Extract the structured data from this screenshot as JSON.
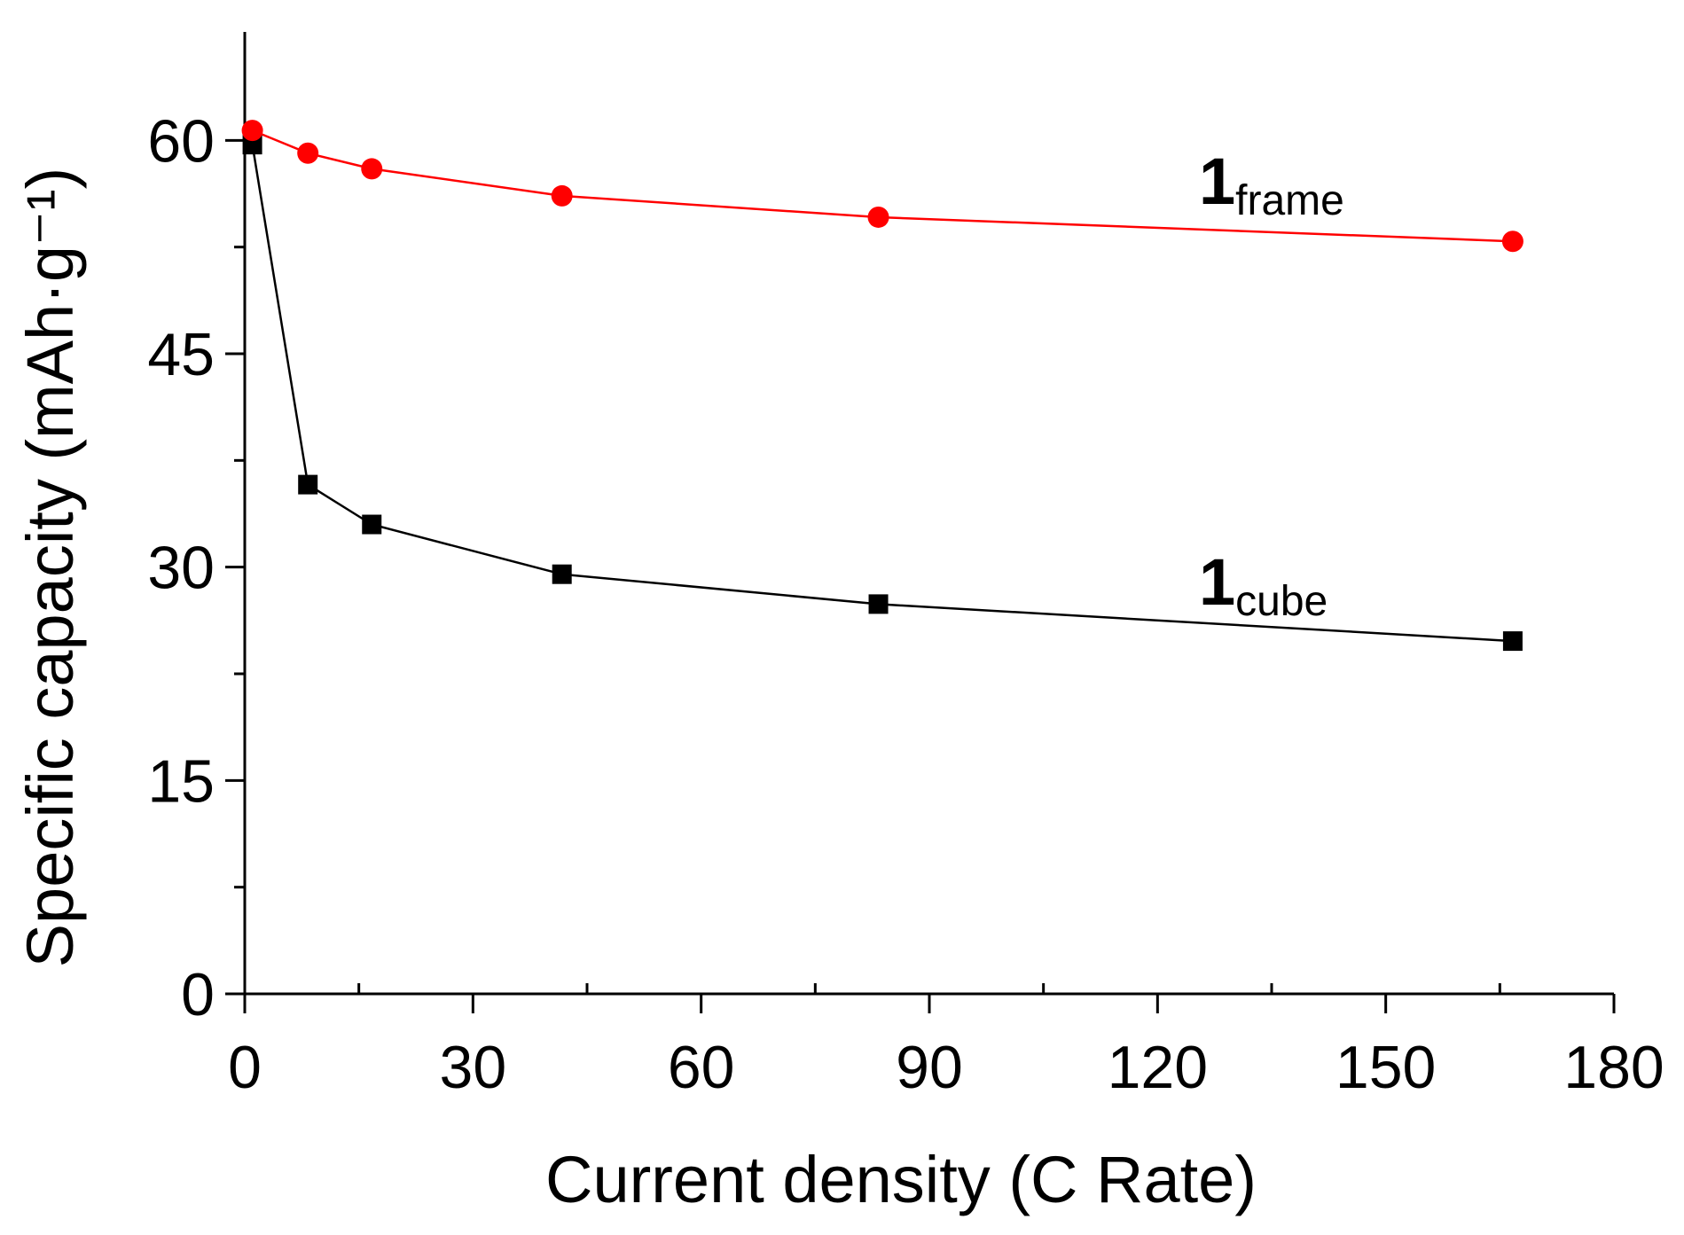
{
  "chart_data": {
    "type": "line",
    "title": "",
    "xlabel": "Current density (C Rate)",
    "ylabel": "Specific capacity (mAh·g⁻¹)",
    "xlim": [
      0,
      180
    ],
    "ylim": [
      0,
      67.5
    ],
    "x_ticks": [
      0,
      30,
      60,
      90,
      120,
      150,
      180
    ],
    "y_ticks": [
      0,
      15,
      30,
      45,
      60
    ],
    "x_tick_labels": [
      "0",
      "30",
      "60",
      "90",
      "120",
      "150",
      "180"
    ],
    "y_tick_labels": [
      "0",
      "15",
      "30",
      "45",
      "60"
    ],
    "grid": false,
    "legend": "none",
    "series": [
      {
        "name": "1frame",
        "label_main": "1",
        "label_sub": "frame",
        "color": "#ff0000",
        "marker": "circle",
        "x": [
          1,
          8.3,
          16.7,
          41.7,
          83.3,
          166.7
        ],
        "values": [
          60.7,
          59.1,
          58.0,
          56.1,
          54.6,
          52.9
        ]
      },
      {
        "name": "1cube",
        "label_main": "1",
        "label_sub": "cube",
        "color": "#000000",
        "marker": "square",
        "x": [
          1,
          8.3,
          16.7,
          41.7,
          83.3,
          166.7
        ],
        "values": [
          59.7,
          35.8,
          33.0,
          29.5,
          27.4,
          24.8
        ]
      }
    ]
  }
}
